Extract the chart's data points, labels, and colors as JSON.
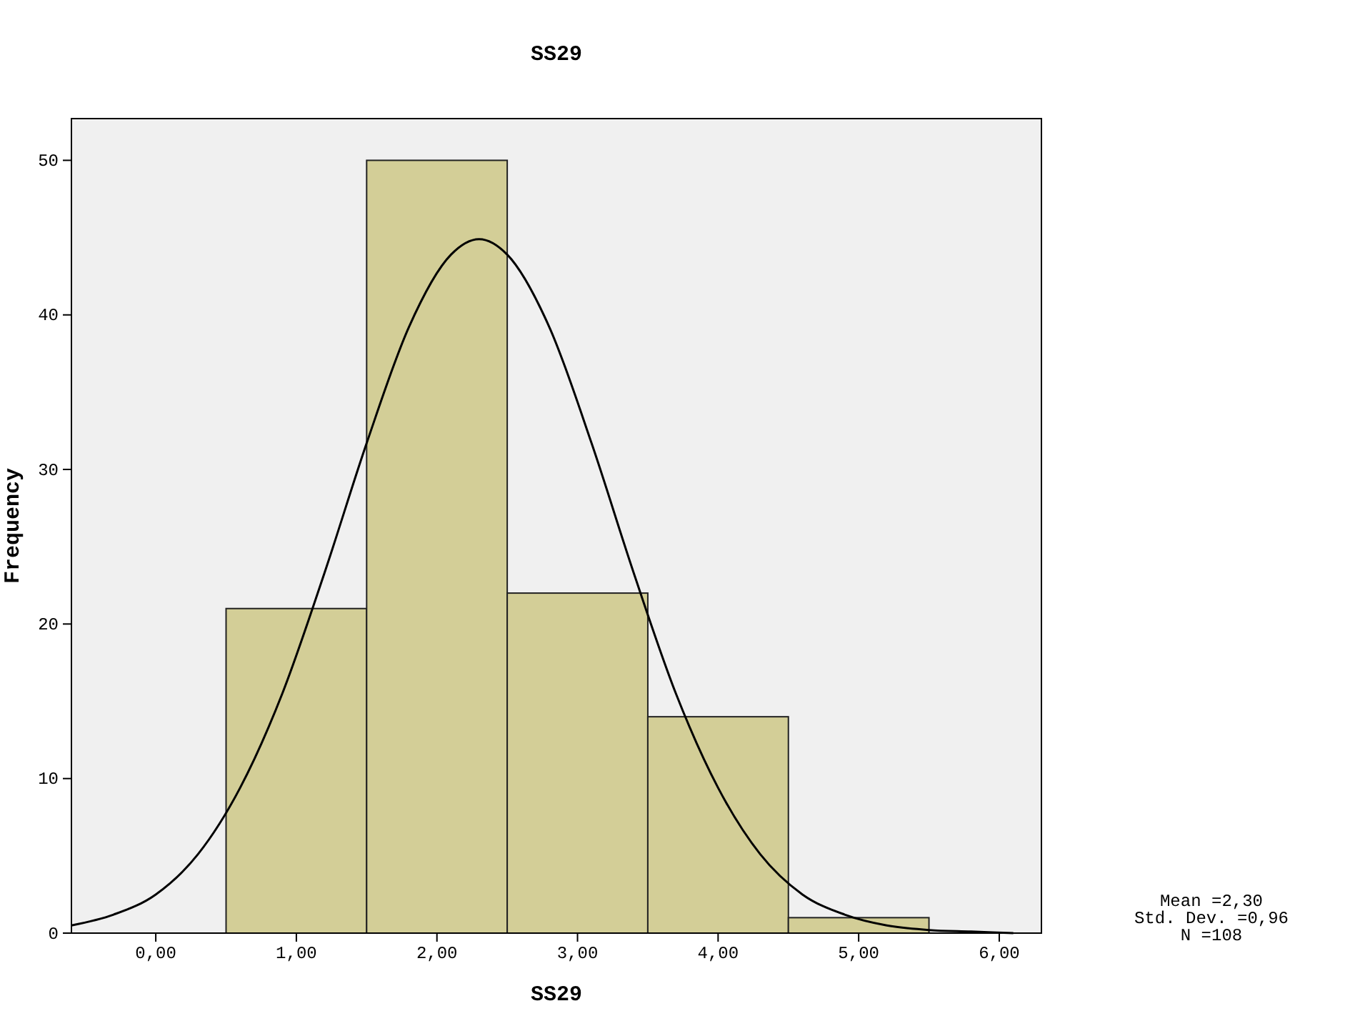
{
  "chart_data": {
    "type": "histogram",
    "title": "SS29",
    "xlabel": "SS29",
    "ylabel": "Frequency",
    "bins": [
      0.5,
      1.5,
      2.5,
      3.5,
      4.5,
      5.5
    ],
    "values": [
      21,
      50,
      22,
      14,
      1
    ],
    "color": "#d3ce97",
    "xlim": [
      -0.6,
      6.3
    ],
    "ylim": [
      0,
      52.7
    ],
    "xticks": [
      {
        "value": 0,
        "label": "0,00"
      },
      {
        "value": 1,
        "label": "1,00"
      },
      {
        "value": 2,
        "label": "2,00"
      },
      {
        "value": 3,
        "label": "3,00"
      },
      {
        "value": 4,
        "label": "4,00"
      },
      {
        "value": 5,
        "label": "5,00"
      },
      {
        "value": 6,
        "label": "6,00"
      }
    ],
    "yticks": [
      0,
      10,
      20,
      30,
      40,
      50
    ],
    "series": [
      {
        "type": "line",
        "color": "#000000",
        "x": [
          -0.6,
          -0.3,
          0,
          0.3,
          0.6,
          0.9,
          1.2,
          1.5,
          1.8,
          2.1,
          2.3,
          2.5,
          2.8,
          3.1,
          3.4,
          3.7,
          4.0,
          4.3,
          4.6,
          4.9,
          5.2,
          5.5,
          5.8,
          6.1
        ],
        "values": [
          0.5,
          1.2,
          2.5,
          5.1,
          9.4,
          15.5,
          23.3,
          31.7,
          39.2,
          43.9,
          44.9,
          43.9,
          39.2,
          31.7,
          23.3,
          15.5,
          9.4,
          5.1,
          2.5,
          1.2,
          0.5,
          0.2,
          0.1,
          0
        ]
      }
    ],
    "annotations": [
      "Mean =2,30",
      "Std. Dev. =0,96",
      "N =108"
    ]
  }
}
